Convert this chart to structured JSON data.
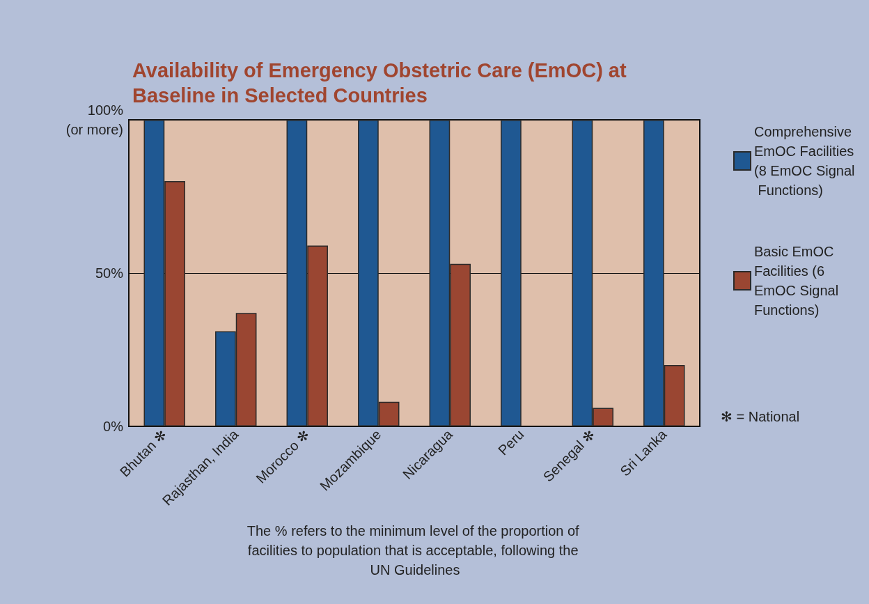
{
  "chart_data": {
    "type": "bar",
    "title": "Availability of Emergency Obstetric Care (EmOC) at Baseline in Selected Countries",
    "categories": [
      "Bhutan ✻",
      "Rajasthan, India",
      "Morocco ✻",
      "Mozambique",
      "Nicaragua",
      "Peru",
      "Senegal ✻",
      "Sri Lanka"
    ],
    "series": [
      {
        "name": "Comprehensive EmOC Facilities (8 EmOC Signal Functions)",
        "color": "#1f5892",
        "values": [
          100,
          31,
          100,
          100,
          100,
          100,
          100,
          100
        ]
      },
      {
        "name": "Basic EmOC Facilities (6 EmOC Signal Functions)",
        "color": "#9a4632",
        "values": [
          80,
          37,
          59,
          8,
          53,
          null,
          6,
          20
        ]
      }
    ],
    "ylim": [
      0,
      100
    ],
    "yticks": [
      {
        "value": 0,
        "label": "0%"
      },
      {
        "value": 50,
        "label": "50%"
      },
      {
        "value": 100,
        "label": "100%\n(or more)"
      }
    ],
    "grid": "y",
    "legend": "right",
    "annotations": [
      "✻ = National",
      "The % refers to the minimum level of the proportion of facilities to population that is acceptable, following the UN Guidelines"
    ]
  }
}
